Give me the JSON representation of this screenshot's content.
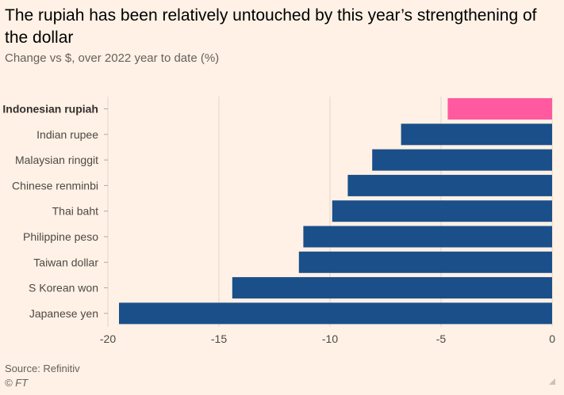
{
  "title": "The rupiah has been relatively untouched by this year’s strengthening of the dollar",
  "subtitle": "Change vs $, over 2022 year to date (%)",
  "source": "Source: Refinitiv",
  "credit": "© FT",
  "colors": {
    "background": "#FFF1E5",
    "highlight": "#FF5AA0",
    "bar": "#1A4F8A",
    "grid": "#E2D6CB",
    "text": "#33302E",
    "tick_text": "#4D4845"
  },
  "chart_data": {
    "type": "bar",
    "orientation": "horizontal",
    "categories": [
      "Indonesian rupiah",
      "Indian rupee",
      "Malaysian ringgit",
      "Chinese renminbi",
      "Thai baht",
      "Philippine peso",
      "Taiwan dollar",
      "S Korean won",
      "Japanese yen"
    ],
    "values": [
      -4.7,
      -6.8,
      -8.1,
      -9.2,
      -9.9,
      -11.2,
      -11.4,
      -14.4,
      -19.5
    ],
    "highlighted_category": "Indonesian rupiah",
    "xlim": [
      -20,
      0
    ],
    "xticks": [
      -20,
      -15,
      -10,
      -5,
      0
    ],
    "xtick_labels": [
      "-20",
      "-15",
      "-10",
      "-5",
      "0"
    ],
    "grid": "vertical"
  }
}
